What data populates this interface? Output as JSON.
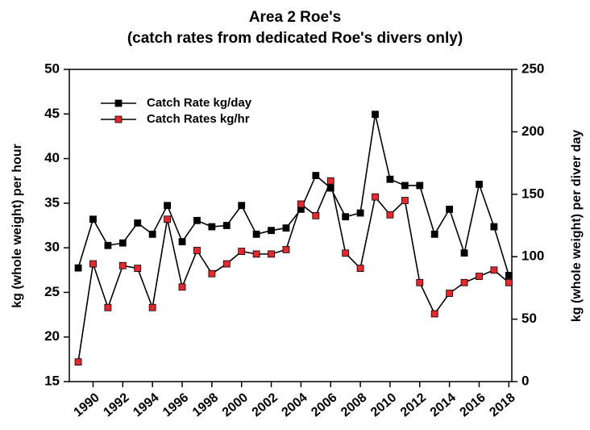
{
  "chart_data": {
    "type": "line",
    "title": "Area 2 Roe's",
    "subtitle": "(catch rates from dedicated Roe's divers only)",
    "y_label": "kg (whole weight) per hour",
    "y2_label": "kg (whole weight) per diver day",
    "x": [
      1989,
      1990,
      1991,
      1992,
      1993,
      1994,
      1995,
      1996,
      1997,
      1998,
      1999,
      2000,
      2001,
      2002,
      2003,
      2004,
      2005,
      2006,
      2007,
      2008,
      2009,
      2010,
      2011,
      2012,
      2013,
      2014,
      2015,
      2016,
      2017,
      2018
    ],
    "series": [
      {
        "name": "Catch Rate kg/day",
        "color": "#000000",
        "axis": "y2",
        "values": [
          91,
          130,
          109,
          111,
          127,
          118,
          141,
          112,
          129,
          124,
          125,
          141,
          118,
          121,
          123,
          138,
          165,
          155,
          132,
          135,
          214,
          162,
          157,
          157,
          118,
          138,
          103,
          158,
          124,
          85
        ]
      },
      {
        "name": "Catch Rates kg/hr",
        "color": "#e8262c",
        "values": [
          17.2,
          28.2,
          23.3,
          28.0,
          27.7,
          23.3,
          33.2,
          25.6,
          29.7,
          27.1,
          28.2,
          29.6,
          29.3,
          29.3,
          29.8,
          34.9,
          33.6,
          37.5,
          29.4,
          27.7,
          35.7,
          33.7,
          35.3,
          26.1,
          22.6,
          24.9,
          26.1,
          26.8,
          27.5,
          26.1
        ]
      }
    ],
    "xlim": [
      1988.4,
      2018.2
    ],
    "xticks": [
      1990,
      1992,
      1994,
      1996,
      1998,
      2000,
      2002,
      2004,
      2006,
      2008,
      2010,
      2012,
      2014,
      2016,
      2018
    ],
    "ylim": [
      15,
      50
    ],
    "yticks": [
      15,
      20,
      25,
      30,
      35,
      40,
      45,
      50
    ],
    "y2lim": [
      0,
      250
    ],
    "y2ticks": [
      0,
      50,
      100,
      150,
      200,
      250
    ],
    "legend": "upper left"
  }
}
